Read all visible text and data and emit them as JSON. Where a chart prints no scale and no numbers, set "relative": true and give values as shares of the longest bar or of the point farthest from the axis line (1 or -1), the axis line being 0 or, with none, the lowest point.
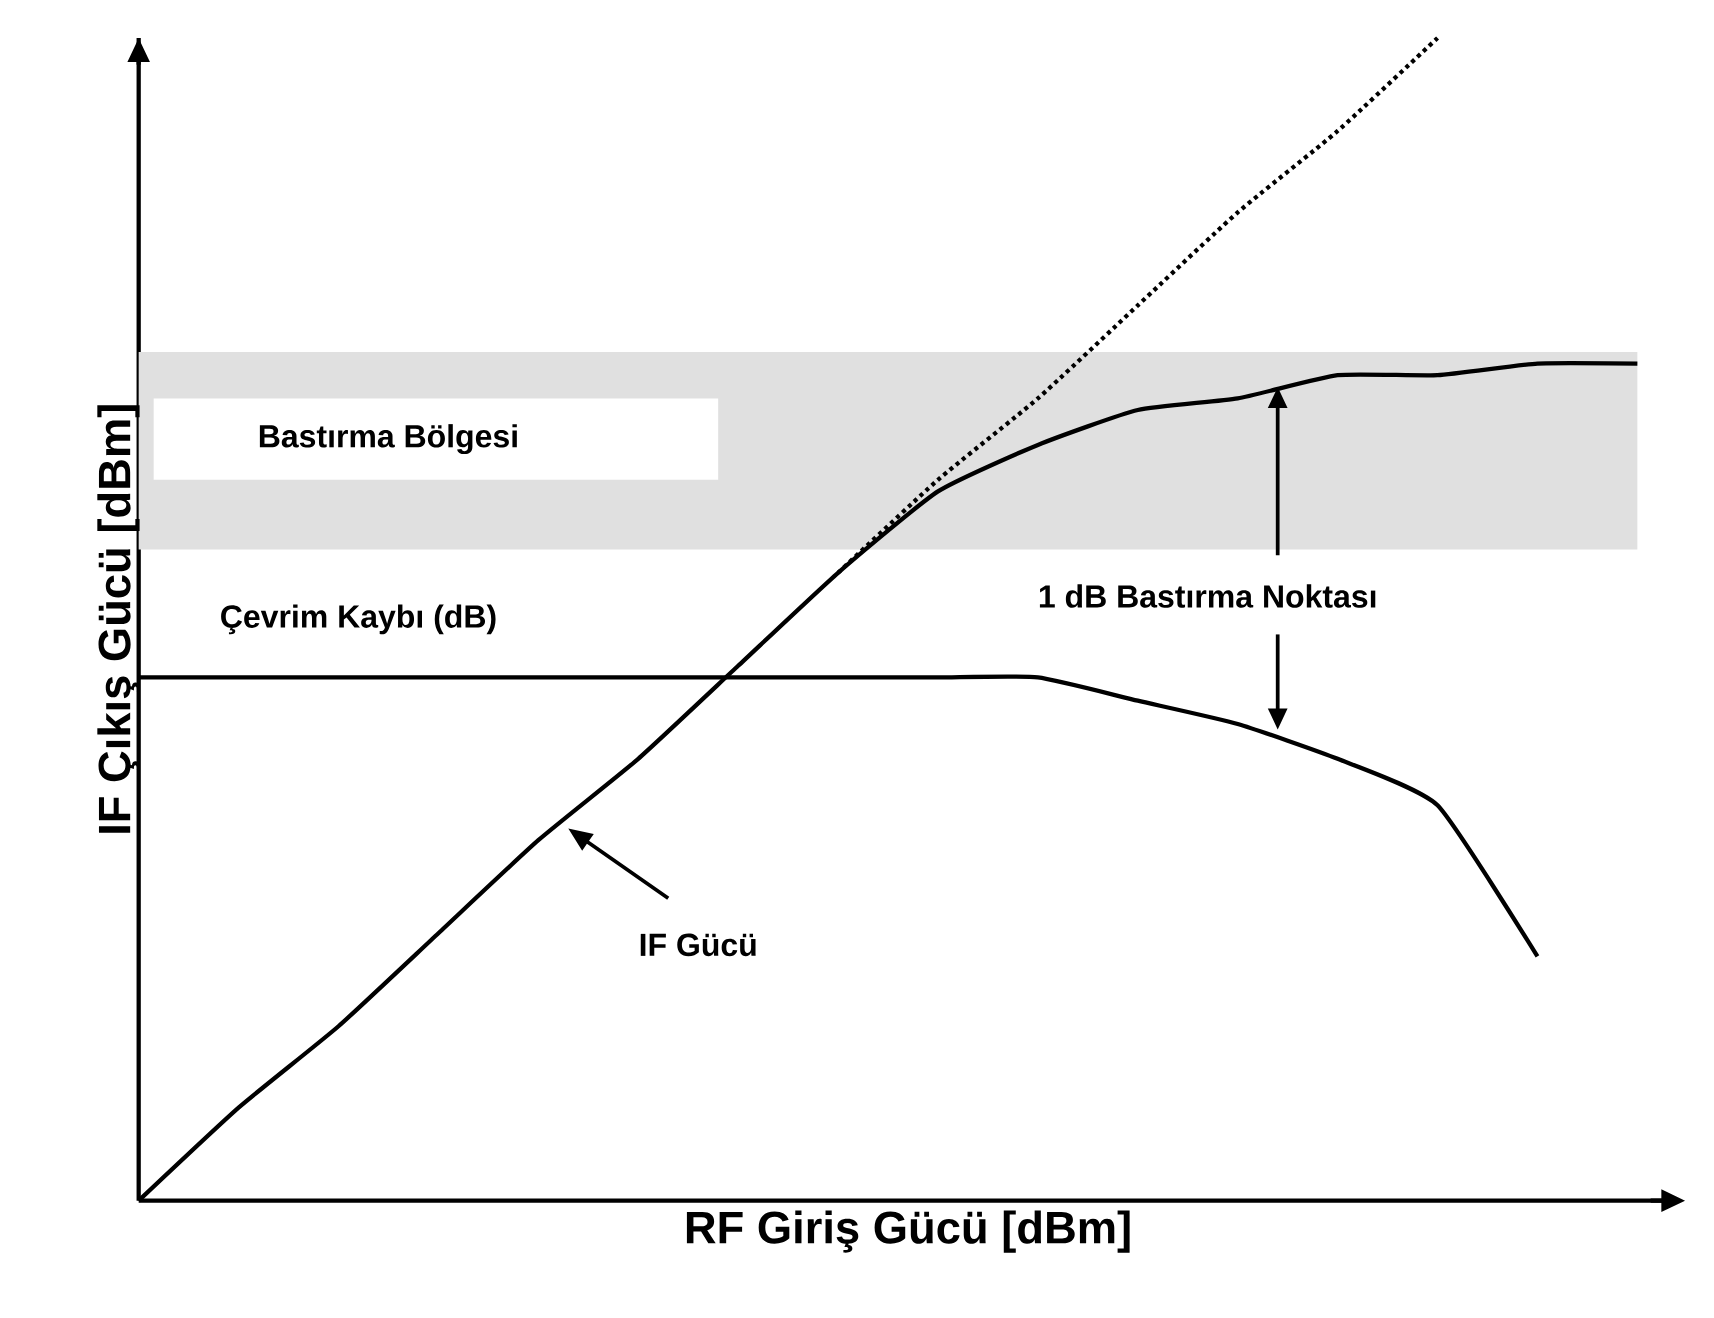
{
  "chart_data": {
    "type": "line",
    "relative": true,
    "xlabel": "RF Giriş Gücü    [dBm]",
    "ylabel": "IF Çıkış Gücü  [dBm]",
    "categories": [
      null,
      null,
      null,
      null,
      null,
      null,
      null,
      null,
      null,
      null,
      null,
      null,
      null,
      null,
      null,
      null
    ],
    "series": [
      {
        "name": "IF Gücü",
        "color": "#000000",
        "values": [
          0,
          0.08,
          0.15,
          0.23,
          0.31,
          0.38,
          0.46,
          0.54,
          0.61,
          0.65,
          0.68,
          0.69,
          0.71,
          0.71,
          0.72,
          0.72
        ]
      },
      {
        "color": "#000000",
        "line_style": "dotted",
        "values": [
          null,
          null,
          null,
          null,
          null,
          null,
          null,
          0.54,
          0.62,
          0.69,
          0.77,
          0.85,
          0.92,
          1.0,
          null,
          null
        ]
      },
      {
        "name": "Çevrim Kaybı (dB)",
        "color": "#000000",
        "values": [
          0.45,
          0.45,
          0.45,
          0.45,
          0.45,
          0.45,
          0.45,
          0.45,
          0.45,
          0.45,
          0.43,
          0.41,
          0.38,
          0.34,
          0.21,
          null
        ]
      }
    ],
    "bands": [
      {
        "axis": "y",
        "from": 0.56,
        "to": 0.73,
        "label": "Bastırma Bölgesi",
        "color": "#e0e0e0"
      }
    ],
    "annotations": [
      "1 dB Bastırma Noktası"
    ]
  }
}
